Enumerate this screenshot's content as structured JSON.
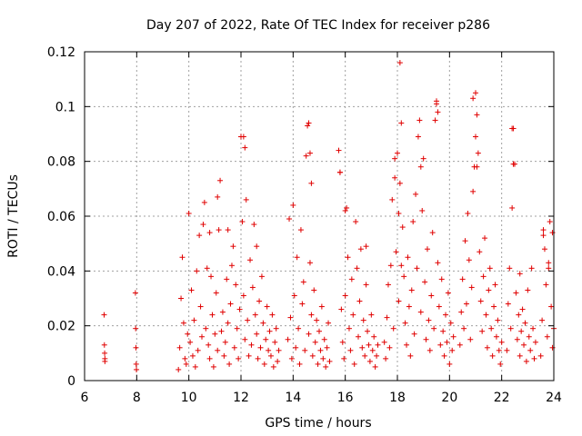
{
  "chart_data": {
    "type": "scatter",
    "title": "Day 207 of 2022, Rate Of TEC Index for receiver p286",
    "xlabel": "GPS time / hours",
    "ylabel": "ROTI / TECUs",
    "xlim": [
      6,
      24
    ],
    "ylim": [
      0,
      0.12
    ],
    "xticks": [
      6,
      8,
      10,
      12,
      14,
      16,
      18,
      20,
      22,
      24
    ],
    "xtick_labels": [
      "6",
      "8",
      "10",
      "12",
      "14",
      "16",
      "18",
      "20",
      "22",
      "24"
    ],
    "yticks": [
      0,
      0.02,
      0.04,
      0.06,
      0.08,
      0.1,
      0.12
    ],
    "ytick_labels": [
      "0",
      "0.02",
      "0.04",
      "0.06",
      "0.08",
      "0.1",
      "0.12"
    ],
    "grid": true,
    "marker": "plus",
    "color": "#e00000",
    "series": [
      {
        "x": [
          6.75,
          6.76,
          6.77,
          6.78,
          6.78,
          7.95,
          7.96,
          7.97,
          7.98,
          7.99,
          9.6,
          9.65,
          9.7,
          9.75,
          9.8,
          9.85,
          9.9,
          9.95,
          10.0,
          10.05,
          10.1,
          10.15,
          10.2,
          10.25,
          10.3,
          10.35,
          10.4,
          10.45,
          10.5,
          10.55,
          10.6,
          10.65,
          10.7,
          10.75,
          10.8,
          10.85,
          10.9,
          10.95,
          11.0,
          11.05,
          11.1,
          11.15,
          11.2,
          11.25,
          11.3,
          11.35,
          11.4,
          11.45,
          11.5,
          11.55,
          11.6,
          11.65,
          11.7,
          11.75,
          11.8,
          11.85,
          11.9,
          11.95,
          12.0,
          12.05,
          12.1,
          12.15,
          12.2,
          12.25,
          12.3,
          12.35,
          12.4,
          12.45,
          12.5,
          12.55,
          12.6,
          12.65,
          12.7,
          12.75,
          12.8,
          12.85,
          12.9,
          12.95,
          13.0,
          13.05,
          13.1,
          13.15,
          13.2,
          13.25,
          13.3,
          13.35,
          13.4,
          13.45,
          13.8,
          13.85,
          13.9,
          13.95,
          14.0,
          14.05,
          14.1,
          14.15,
          14.2,
          14.25,
          14.3,
          14.35,
          14.4,
          14.45,
          14.5,
          14.55,
          14.6,
          14.65,
          14.7,
          14.75,
          14.8,
          14.85,
          14.9,
          14.95,
          15.0,
          15.05,
          15.1,
          15.15,
          15.2,
          15.25,
          15.3,
          15.35,
          15.4,
          15.75,
          15.8,
          15.85,
          15.9,
          15.95,
          16.0,
          16.05,
          16.1,
          16.15,
          16.2,
          16.25,
          16.3,
          16.35,
          16.4,
          16.45,
          16.5,
          16.55,
          16.6,
          16.65,
          16.7,
          16.75,
          16.8,
          16.85,
          16.9,
          16.95,
          17.0,
          17.05,
          17.1,
          17.15,
          17.2,
          17.25,
          17.5,
          17.55,
          17.6,
          17.65,
          17.7,
          17.75,
          17.8,
          17.85,
          17.9,
          17.95,
          18.0,
          18.05,
          18.1,
          18.15,
          18.2,
          18.25,
          18.3,
          18.35,
          18.4,
          18.45,
          18.5,
          18.55,
          18.6,
          18.65,
          18.7,
          18.75,
          18.8,
          18.85,
          18.9,
          18.95,
          19.0,
          19.05,
          19.1,
          19.15,
          19.2,
          19.25,
          19.3,
          19.35,
          19.4,
          19.45,
          19.5,
          19.55,
          19.6,
          19.65,
          19.7,
          19.75,
          19.8,
          19.85,
          19.9,
          19.95,
          20.0,
          20.05,
          20.1,
          20.15,
          20.4,
          20.45,
          20.5,
          20.55,
          20.6,
          20.65,
          20.7,
          20.75,
          20.8,
          20.85,
          20.9,
          20.95,
          21.0,
          21.05,
          21.1,
          21.15,
          21.2,
          21.25,
          21.3,
          21.35,
          21.4,
          21.45,
          21.5,
          21.55,
          21.6,
          21.65,
          21.7,
          21.75,
          21.8,
          21.85,
          21.9,
          21.95,
          22.0,
          22.2,
          22.25,
          22.3,
          22.35,
          22.4,
          22.45,
          22.5,
          22.55,
          22.6,
          22.65,
          22.7,
          22.75,
          22.8,
          22.85,
          22.9,
          22.95,
          23.0,
          23.05,
          23.1,
          23.15,
          23.2,
          23.25,
          23.3,
          23.5,
          23.55,
          23.6,
          23.65,
          23.7,
          23.75,
          23.8,
          23.85,
          23.9,
          23.95,
          24.0,
          10.8,
          11.1,
          11.5,
          12.1,
          12.15,
          12.6,
          14.6,
          14.65,
          14.7,
          15.8,
          16.0,
          16.8,
          17.9,
          18.05,
          18.1,
          18.15,
          18.9,
          19.5,
          19.55,
          20.9,
          21.0,
          21.05,
          22.4,
          22.45,
          22.7,
          23.6,
          23.8,
          23.95
        ],
        "y": [
          0.024,
          0.013,
          0.01,
          0.008,
          0.007,
          0.032,
          0.019,
          0.012,
          0.006,
          0.004,
          0.004,
          0.012,
          0.03,
          0.045,
          0.021,
          0.008,
          0.006,
          0.017,
          0.061,
          0.014,
          0.033,
          0.009,
          0.022,
          0.005,
          0.04,
          0.011,
          0.053,
          0.027,
          0.016,
          0.057,
          0.065,
          0.019,
          0.041,
          0.013,
          0.008,
          0.038,
          0.024,
          0.005,
          0.017,
          0.032,
          0.011,
          0.055,
          0.073,
          0.018,
          0.025,
          0.009,
          0.014,
          0.037,
          0.021,
          0.006,
          0.028,
          0.042,
          0.049,
          0.012,
          0.035,
          0.019,
          0.008,
          0.026,
          0.089,
          0.058,
          0.031,
          0.015,
          0.066,
          0.022,
          0.009,
          0.044,
          0.013,
          0.034,
          0.057,
          0.024,
          0.017,
          0.008,
          0.029,
          0.012,
          0.038,
          0.021,
          0.006,
          0.015,
          0.027,
          0.011,
          0.018,
          0.009,
          0.024,
          0.005,
          0.014,
          0.019,
          0.007,
          0.011,
          0.015,
          0.059,
          0.023,
          0.008,
          0.064,
          0.031,
          0.012,
          0.045,
          0.019,
          0.006,
          0.055,
          0.028,
          0.036,
          0.011,
          0.082,
          0.093,
          0.017,
          0.043,
          0.024,
          0.009,
          0.033,
          0.014,
          0.022,
          0.006,
          0.018,
          0.011,
          0.027,
          0.008,
          0.015,
          0.005,
          0.012,
          0.021,
          0.007,
          0.084,
          0.076,
          0.026,
          0.014,
          0.008,
          0.031,
          0.063,
          0.045,
          0.019,
          0.011,
          0.037,
          0.024,
          0.006,
          0.058,
          0.041,
          0.016,
          0.029,
          0.048,
          0.012,
          0.022,
          0.009,
          0.035,
          0.018,
          0.013,
          0.007,
          0.024,
          0.011,
          0.016,
          0.005,
          0.009,
          0.013,
          0.014,
          0.008,
          0.023,
          0.035,
          0.012,
          0.042,
          0.066,
          0.019,
          0.074,
          0.047,
          0.083,
          0.029,
          0.116,
          0.094,
          0.056,
          0.038,
          0.021,
          0.013,
          0.045,
          0.027,
          0.009,
          0.033,
          0.058,
          0.017,
          0.068,
          0.041,
          0.089,
          0.095,
          0.025,
          0.062,
          0.081,
          0.036,
          0.015,
          0.048,
          0.022,
          0.011,
          0.031,
          0.054,
          0.019,
          0.095,
          0.102,
          0.043,
          0.027,
          0.013,
          0.037,
          0.018,
          0.009,
          0.024,
          0.014,
          0.032,
          0.006,
          0.021,
          0.011,
          0.016,
          0.013,
          0.025,
          0.037,
          0.019,
          0.051,
          0.028,
          0.061,
          0.044,
          0.015,
          0.034,
          0.069,
          0.078,
          0.105,
          0.097,
          0.083,
          0.047,
          0.029,
          0.018,
          0.038,
          0.052,
          0.024,
          0.012,
          0.033,
          0.041,
          0.019,
          0.009,
          0.027,
          0.035,
          0.016,
          0.022,
          0.011,
          0.006,
          0.014,
          0.011,
          0.028,
          0.041,
          0.019,
          0.063,
          0.092,
          0.079,
          0.032,
          0.015,
          0.024,
          0.009,
          0.018,
          0.026,
          0.013,
          0.021,
          0.007,
          0.033,
          0.016,
          0.011,
          0.041,
          0.019,
          0.008,
          0.014,
          0.009,
          0.022,
          0.053,
          0.048,
          0.035,
          0.016,
          0.041,
          0.058,
          0.027,
          0.012,
          0.019,
          0.054,
          0.067,
          0.055,
          0.089,
          0.085,
          0.049,
          0.094,
          0.083,
          0.072,
          0.076,
          0.062,
          0.049,
          0.081,
          0.061,
          0.072,
          0.042,
          0.078,
          0.101,
          0.098,
          0.103,
          0.089,
          0.078,
          0.092,
          0.079,
          0.039,
          0.055,
          0.043,
          0.054
        ]
      }
    ]
  }
}
